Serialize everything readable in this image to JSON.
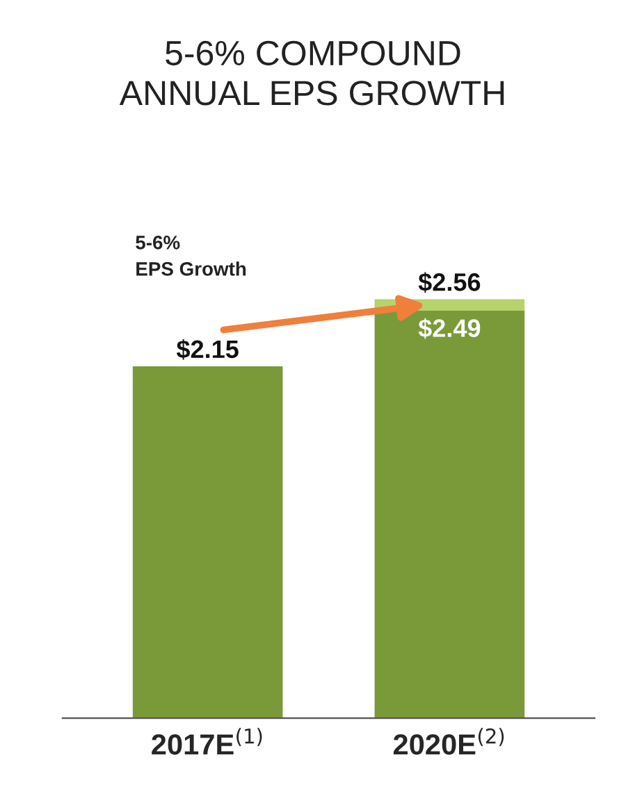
{
  "chart_data": {
    "type": "bar",
    "title": "5-6% COMPOUND\nANNUAL EPS GROWTH",
    "categories": [
      "2017E$^{(1)}$",
      "2020E$^{(2)}$"
    ],
    "stacked": true,
    "series": [
      {
        "color": "#7a9a3a",
        "values": [
          2.15,
          2.49
        ],
        "value_labels": [
          "$2.15",
          "$2.49"
        ]
      },
      {
        "color": "#b8d26c",
        "values": [
          null,
          0.07
        ]
      }
    ],
    "totals": [
      null,
      "$2.56"
    ],
    "annotations": [
      "5-6%\nEPS Growth"
    ]
  }
}
